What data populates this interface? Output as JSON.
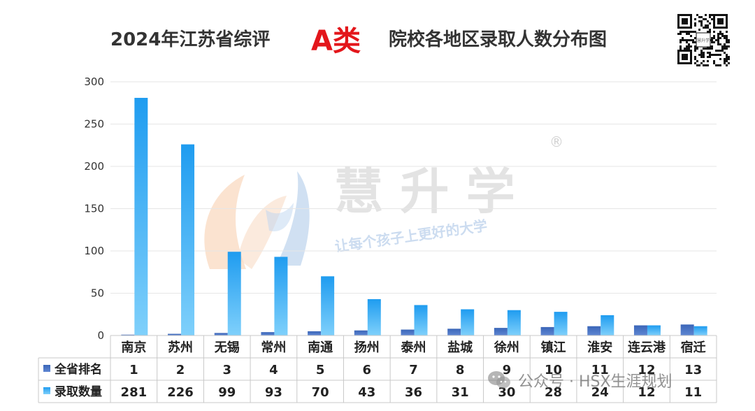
{
  "title": {
    "prefix": "2024年江苏省综评",
    "highlight": "A类",
    "suffix": "院校各地区录取人数分布图"
  },
  "watermark": {
    "brand": "慧 升 学",
    "registered": "®",
    "slogan": "让每个孩子上更好的大学",
    "footer": "公众号 · HSX生涯规划"
  },
  "qr_code": {
    "center_label": "慧升学"
  },
  "colors": {
    "rank_series": "#4472c4",
    "count_series": "#29a9f4",
    "title_highlight": "#e3161b",
    "grid": "#e6e6e6"
  },
  "icons": [
    "wechat-icon",
    "qr-code-icon",
    "brand-logo-icon"
  ],
  "chart_data": {
    "type": "bar",
    "categories": [
      "南京",
      "苏州",
      "无锡",
      "常州",
      "南通",
      "扬州",
      "泰州",
      "盐城",
      "徐州",
      "镇江",
      "淮安",
      "连云港",
      "宿迁"
    ],
    "series": [
      {
        "name": "全省排名",
        "values": [
          1,
          2,
          3,
          4,
          5,
          6,
          7,
          8,
          9,
          10,
          11,
          12,
          13
        ]
      },
      {
        "name": "录取数量",
        "values": [
          281,
          226,
          99,
          93,
          70,
          43,
          36,
          31,
          30,
          28,
          24,
          12,
          11
        ]
      }
    ],
    "y_ticks": [
      "0",
      "50",
      "100",
      "150",
      "200",
      "250",
      "300"
    ],
    "ylim": [
      0,
      300
    ],
    "grid": true,
    "legend": "data-table-left"
  }
}
